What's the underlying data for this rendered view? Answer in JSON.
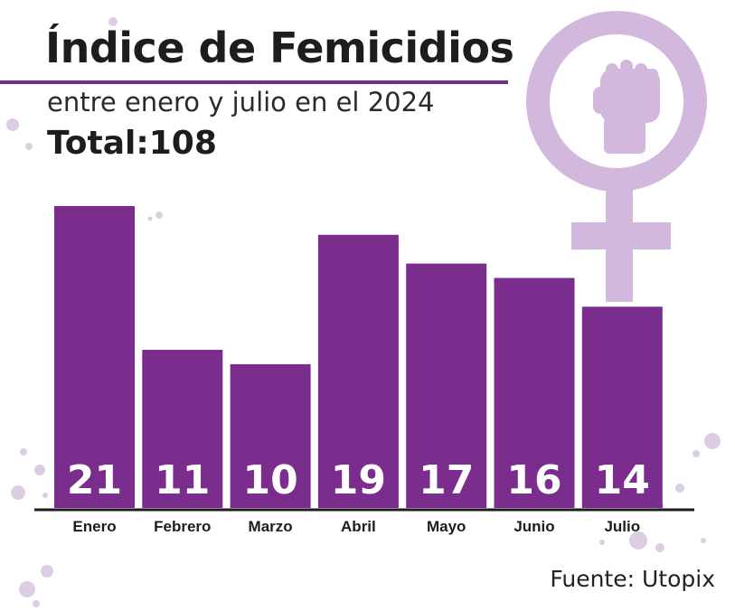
{
  "header": {
    "title": "Índice de Femicidios",
    "subtitle": "entre enero y julio en el 2024",
    "total": "Total:108"
  },
  "source": "Fuente: Utopix",
  "colors": {
    "bar": "#7b2d8e",
    "accent": "#7b2d8e",
    "symbol": "#d2b8dc",
    "splash": "#ddcde4",
    "text": "#1d1d1d",
    "value_label": "#ffffff"
  },
  "icons": [
    "venus-fist-icon"
  ],
  "chart_data": {
    "type": "bar",
    "title": "Índice de Femicidios",
    "subtitle": "entre enero y julio en el 2024",
    "categories": [
      "Enero",
      "Febrero",
      "Marzo",
      "Abril",
      "Mayo",
      "Junio",
      "Julio"
    ],
    "values": [
      21,
      11,
      10,
      19,
      17,
      16,
      14
    ],
    "value_labels": [
      "21",
      "11",
      "10",
      "19",
      "17",
      "16",
      "14"
    ],
    "ylim": [
      0,
      21
    ],
    "grid": false,
    "legend": "none"
  }
}
